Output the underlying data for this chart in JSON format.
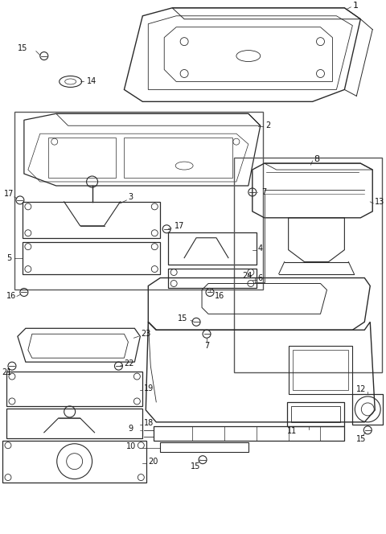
{
  "bg_color": "#ffffff",
  "line_color": "#2a2a2a",
  "label_color": "#111111",
  "figsize": [
    4.8,
    6.64
  ],
  "dpi": 100
}
